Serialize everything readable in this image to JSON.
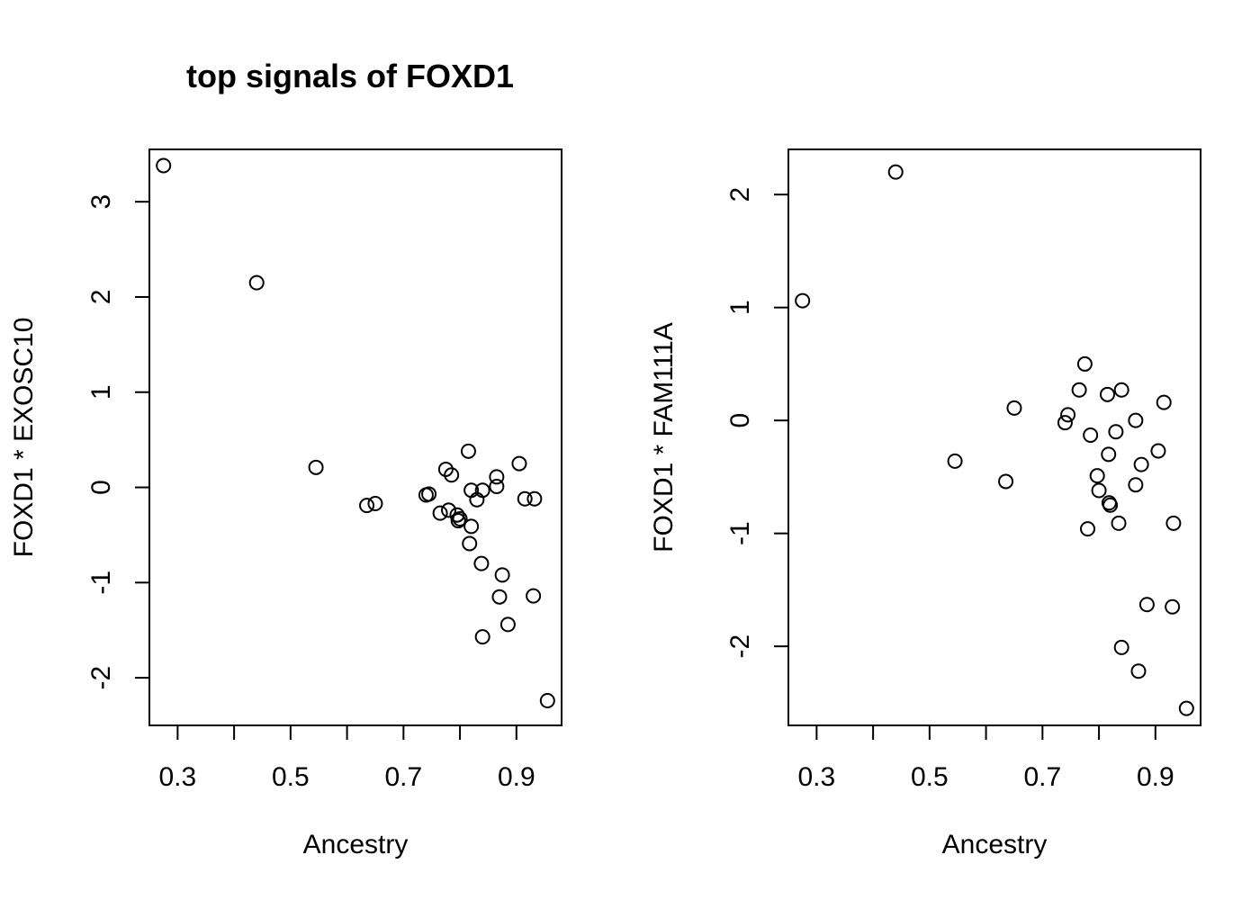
{
  "chart_data": [
    {
      "type": "scatter",
      "title": "top signals of FOXD1",
      "xlabel": "Ancestry",
      "ylabel": "FOXD1 * EXOSC10",
      "xlim": [
        0.25,
        0.98
      ],
      "ylim": [
        -2.5,
        3.55
      ],
      "xticks": [
        0.3,
        0.4,
        0.5,
        0.6,
        0.7,
        0.8,
        0.9
      ],
      "xtick_labels": [
        "0.3",
        "",
        "0.5",
        "",
        "0.7",
        "",
        "0.9"
      ],
      "yticks": [
        -2,
        -1,
        0,
        1,
        2,
        3
      ],
      "ytick_labels": [
        "-2",
        "-1",
        "0",
        "1",
        "2",
        "3"
      ],
      "grid": false,
      "x": [
        0.275,
        0.44,
        0.545,
        0.635,
        0.65,
        0.74,
        0.745,
        0.765,
        0.775,
        0.78,
        0.785,
        0.795,
        0.797,
        0.8,
        0.815,
        0.817,
        0.82,
        0.82,
        0.83,
        0.838,
        0.84,
        0.84,
        0.865,
        0.865,
        0.87,
        0.875,
        0.885,
        0.905,
        0.915,
        0.93,
        0.932,
        0.955
      ],
      "y": [
        3.38,
        2.15,
        0.21,
        -0.19,
        -0.17,
        -0.08,
        -0.07,
        -0.27,
        0.19,
        -0.24,
        0.13,
        -0.29,
        -0.35,
        -0.33,
        0.38,
        -0.59,
        -0.03,
        -0.41,
        -0.13,
        -0.8,
        -0.03,
        -1.57,
        0.01,
        0.11,
        -1.15,
        -0.92,
        -1.44,
        0.25,
        -0.12,
        -1.14,
        -0.12,
        -2.24
      ]
    },
    {
      "type": "scatter",
      "title": "",
      "xlabel": "Ancestry",
      "ylabel": "FOXD1 * FAM111A",
      "xlim": [
        0.25,
        0.98
      ],
      "ylim": [
        -2.7,
        2.4
      ],
      "xticks": [
        0.3,
        0.4,
        0.5,
        0.6,
        0.7,
        0.8,
        0.9
      ],
      "xtick_labels": [
        "0.3",
        "",
        "0.5",
        "",
        "0.7",
        "",
        "0.9"
      ],
      "yticks": [
        -2,
        -1,
        0,
        1,
        2
      ],
      "ytick_labels": [
        "-2",
        "-1",
        "0",
        "1",
        "2"
      ],
      "grid": false,
      "x": [
        0.275,
        0.44,
        0.545,
        0.635,
        0.65,
        0.74,
        0.745,
        0.765,
        0.775,
        0.78,
        0.785,
        0.797,
        0.8,
        0.815,
        0.817,
        0.818,
        0.82,
        0.83,
        0.835,
        0.84,
        0.84,
        0.865,
        0.865,
        0.87,
        0.875,
        0.885,
        0.905,
        0.915,
        0.93,
        0.932,
        0.955
      ],
      "y": [
        1.06,
        2.2,
        -0.36,
        -0.54,
        0.11,
        -0.02,
        0.05,
        0.27,
        0.5,
        -0.96,
        -0.13,
        -0.49,
        -0.62,
        0.23,
        -0.3,
        -0.73,
        -0.75,
        -0.1,
        -0.91,
        0.27,
        -2.01,
        0.0,
        -0.57,
        -2.22,
        -0.39,
        -1.63,
        -0.27,
        0.16,
        -1.65,
        -0.91,
        -2.55
      ]
    }
  ]
}
